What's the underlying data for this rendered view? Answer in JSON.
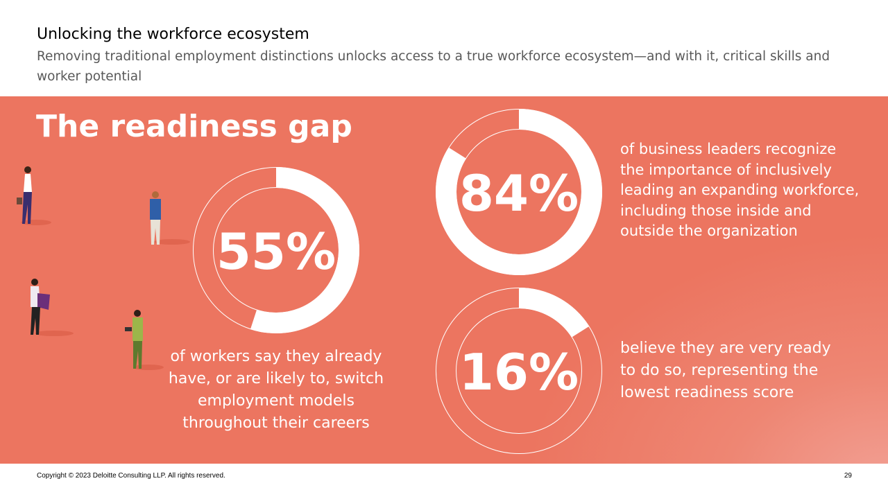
{
  "header": {
    "title": "Unlocking the workforce ecosystem",
    "subtitle": "Removing traditional employment distinctions unlocks access to a true workforce ecosystem—and with it, critical skills and worker potential"
  },
  "panel": {
    "title": "The readiness gap",
    "background_color": "#ec7560",
    "stats": [
      {
        "value": "55%",
        "fraction": 0.55,
        "caption_lines": [
          "of workers say they already",
          "have, or are likely to, switch",
          "employment models",
          "throughout their careers"
        ]
      },
      {
        "value": "84%",
        "fraction": 0.84,
        "caption_lines": [
          "of business leaders recognize",
          "the importance of inclusively",
          "leading an expanding workforce,",
          "including those inside and",
          "outside the organization"
        ]
      },
      {
        "value": "16%",
        "fraction": 0.16,
        "caption_lines": [
          "believe they are very ready",
          "to do so, representing the",
          "lowest readiness score"
        ]
      }
    ]
  },
  "footer": {
    "copyright": "Copyright © 2023 Deloitte Consulting LLP. All rights reserved.",
    "page_number": "29"
  }
}
